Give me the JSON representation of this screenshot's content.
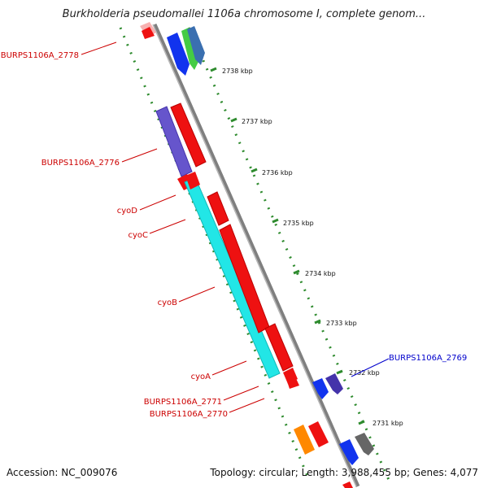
{
  "header": {
    "title": "Burkholderia pseudomallei 1106a chromosome I, complete genom..."
  },
  "footer": {
    "accession": "Accession: NC_009076",
    "topology": "Topology: circular; Length: 3,988,455 bp; Genes: 4,077"
  },
  "map": {
    "kbp_ticks": [
      "2738 kbp",
      "2737 kbp",
      "2736 kbp",
      "2735 kbp",
      "2734 kbp",
      "2733 kbp",
      "2732 kbp",
      "2731 kbp"
    ],
    "left_labels": [
      "BURPS1106A_2778",
      "BURPS1106A_2776",
      "cyoD",
      "cyoC",
      "cyoB",
      "cyoA",
      "BURPS1106A_2771",
      "BURPS1106A_2770"
    ],
    "right_labels": [
      "BURPS1106A_2769"
    ],
    "colors": {
      "backbone": "#7f7f7f",
      "tick_green": "#2e8b2e",
      "gene_red": "#ee1111",
      "gene_cyan": "#22e6e6",
      "gene_purple": "#6655cc",
      "gene_blue": "#1133ee",
      "gene_green": "#44cc44",
      "gene_steel": "#3a6fb0",
      "gene_orange": "#ff8800",
      "gene_gray": "#666666",
      "label_red": "#cc0000",
      "label_blue": "#0000cc"
    }
  }
}
